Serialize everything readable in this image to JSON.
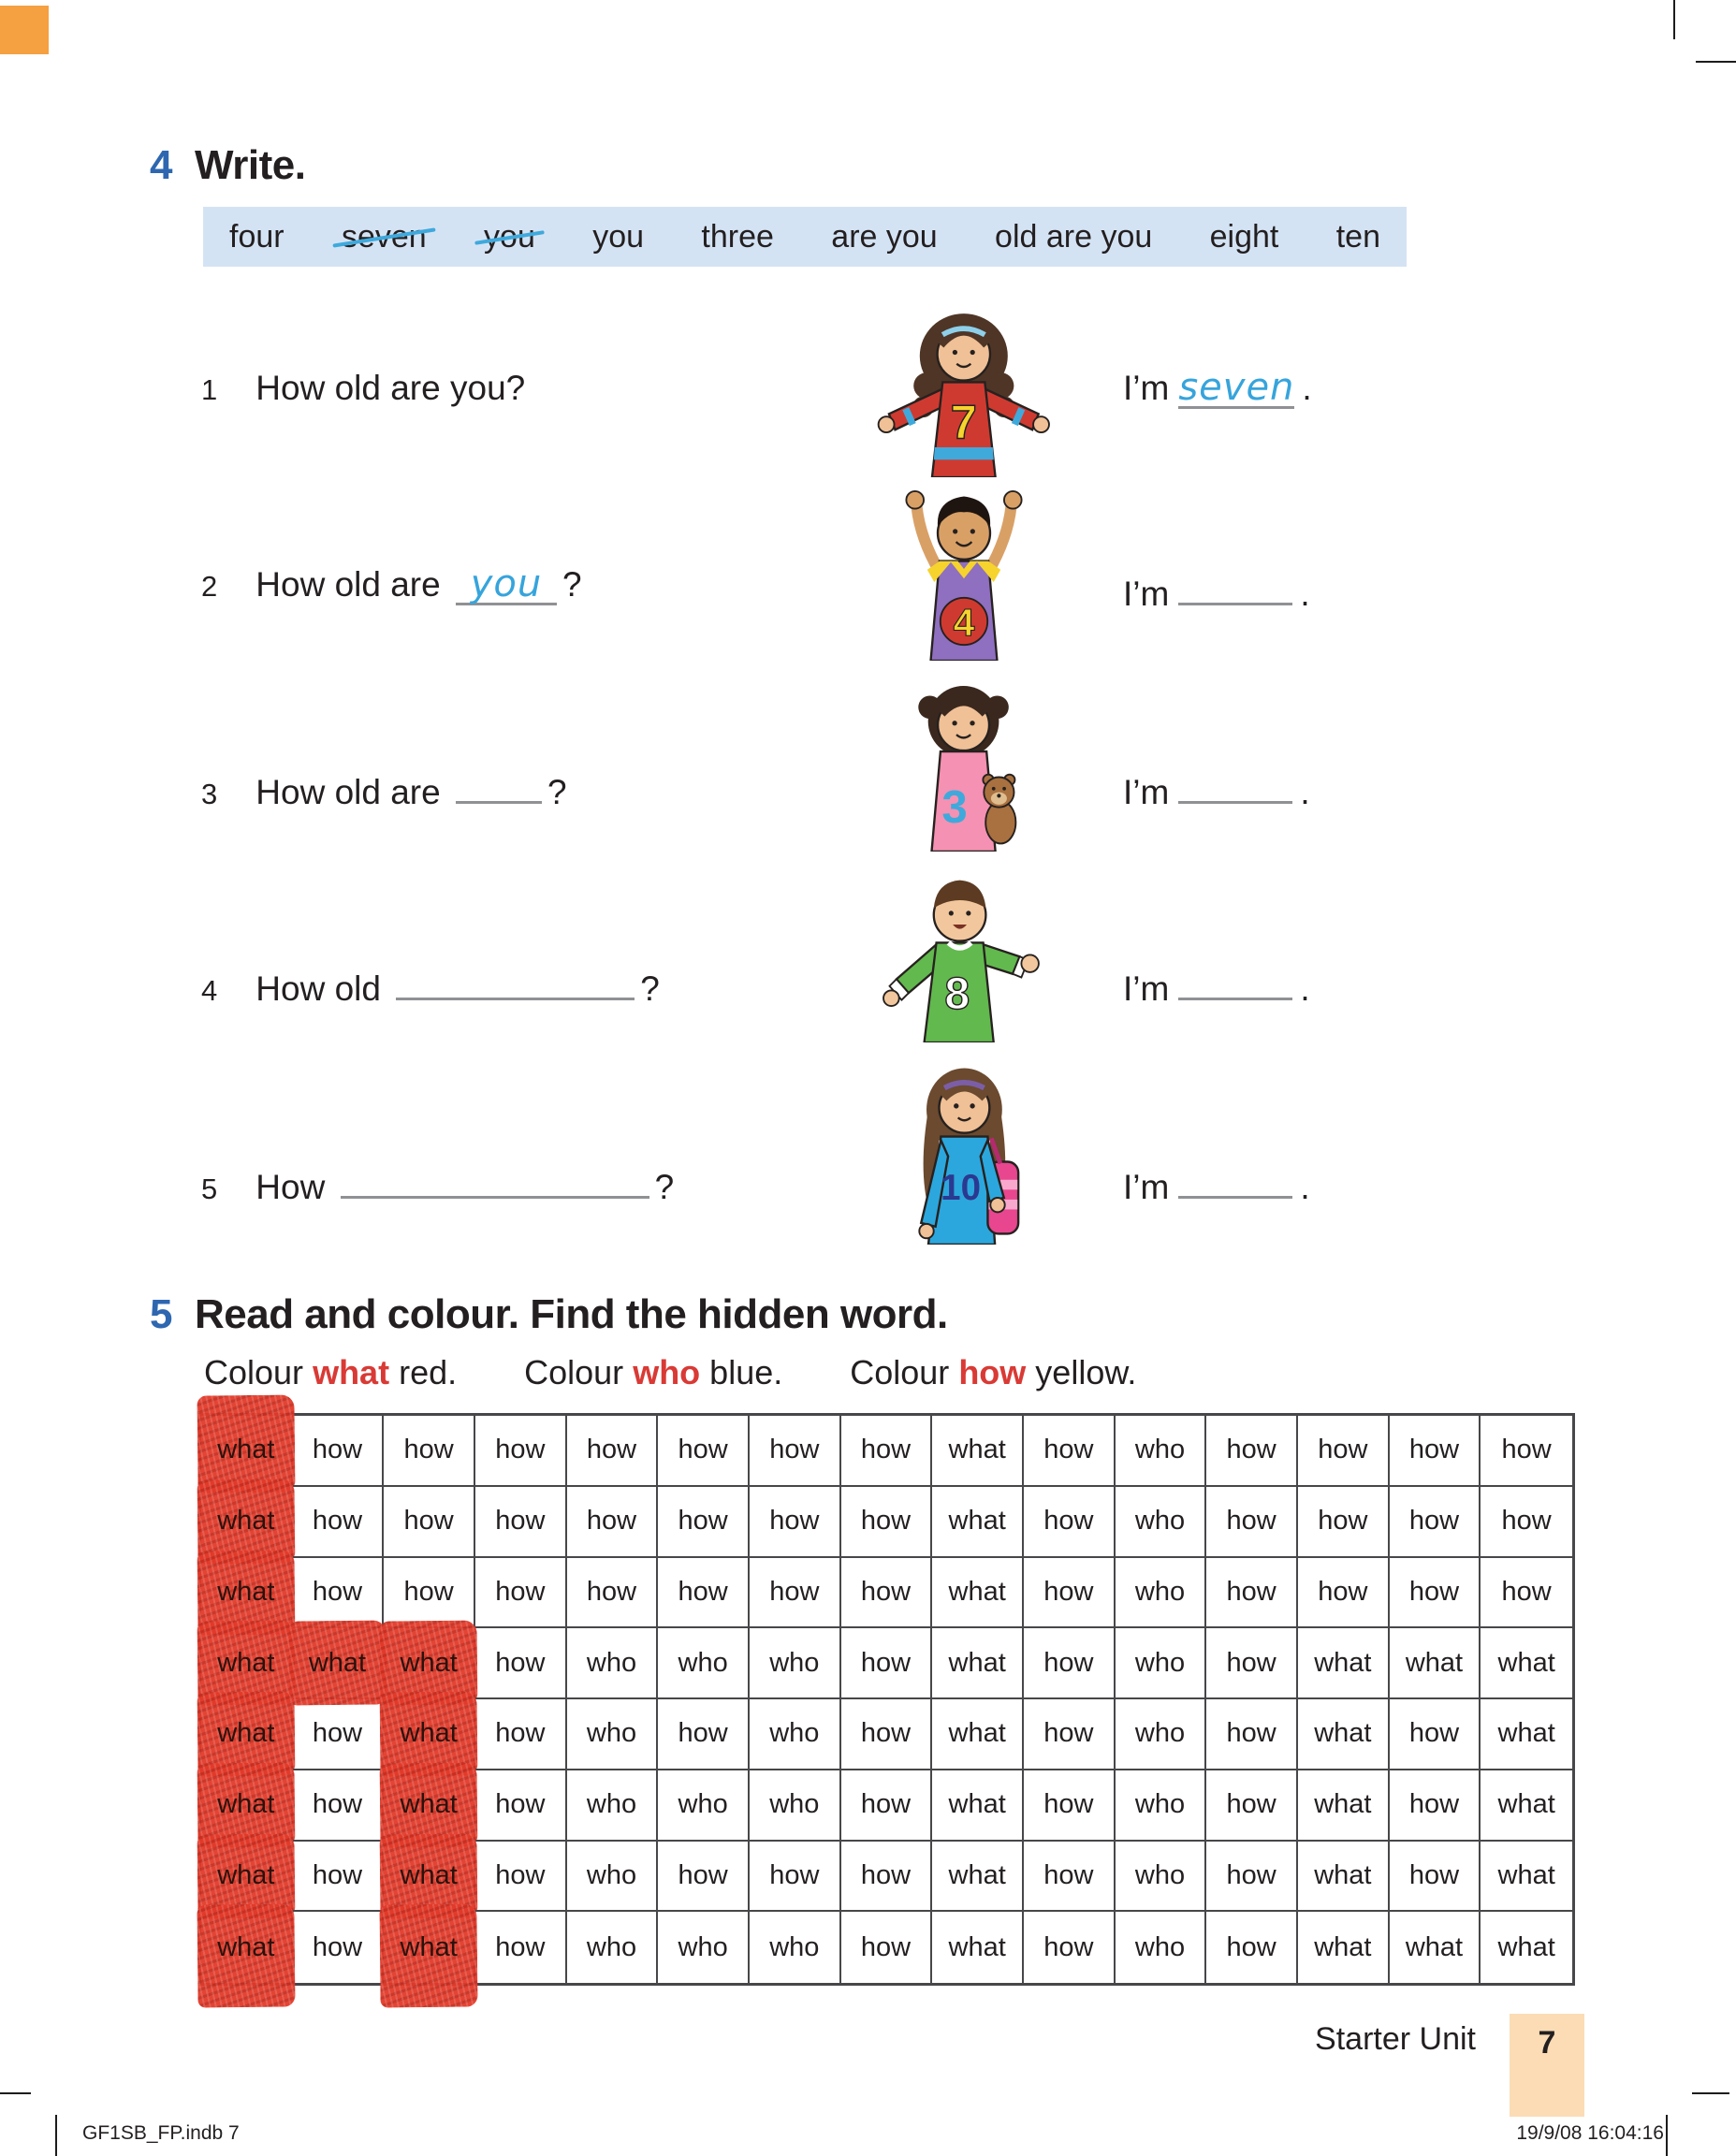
{
  "exercise4": {
    "number": "4",
    "title": "Write.",
    "word_bank": [
      {
        "text": "four",
        "struck": false
      },
      {
        "text": "seven",
        "struck": true
      },
      {
        "text": "you",
        "struck": true
      },
      {
        "text": "you",
        "struck": false
      },
      {
        "text": "three",
        "struck": false
      },
      {
        "text": "are you",
        "struck": false
      },
      {
        "text": "old are you",
        "struck": false
      },
      {
        "text": "eight",
        "struck": false
      },
      {
        "text": "ten",
        "struck": false
      }
    ],
    "questions": [
      {
        "num": "1",
        "text": "How old are you?",
        "blank_written": "",
        "q_end": "",
        "answer_prefix": "I’m",
        "answer_written": "seven",
        "answer_end": ".",
        "shirt_number": "7",
        "character": "girl-red-shirt"
      },
      {
        "num": "2",
        "text": "How old are",
        "blank_written": "you",
        "q_end": "?",
        "answer_prefix": "I’m",
        "answer_written": "",
        "answer_end": ".",
        "shirt_number": "4",
        "character": "boy-purple-shirt"
      },
      {
        "num": "3",
        "text": "How old are",
        "blank_written": "",
        "q_end": "?",
        "answer_prefix": "I’m",
        "answer_written": "",
        "answer_end": ".",
        "shirt_number": "3",
        "character": "girl-pink-shirt-teddy"
      },
      {
        "num": "4",
        "text": "How old",
        "blank_written": "",
        "q_end": "?",
        "answer_prefix": "I’m",
        "answer_written": "",
        "answer_end": ".",
        "shirt_number": "8",
        "character": "boy-green-shirt"
      },
      {
        "num": "5",
        "text": "How",
        "blank_written": "",
        "q_end": "?",
        "answer_prefix": "I’m",
        "answer_written": "",
        "answer_end": ".",
        "shirt_number": "10",
        "character": "girl-blue-shirt-bag"
      }
    ]
  },
  "exercise5": {
    "number": "5",
    "title": "Read and colour. Find the hidden word.",
    "instructions": [
      {
        "pre": "Colour ",
        "word": "what",
        "post": " red."
      },
      {
        "pre": "Colour ",
        "word": "who",
        "post": " blue."
      },
      {
        "pre": "Colour ",
        "word": "how",
        "post": " yellow."
      }
    ],
    "grid": {
      "rows": [
        [
          "what",
          "how",
          "how",
          "how",
          "how",
          "how",
          "how",
          "how",
          "what",
          "how",
          "who",
          "how",
          "how",
          "how",
          "how"
        ],
        [
          "what",
          "how",
          "how",
          "how",
          "how",
          "how",
          "how",
          "how",
          "what",
          "how",
          "who",
          "how",
          "how",
          "how",
          "how"
        ],
        [
          "what",
          "how",
          "how",
          "how",
          "how",
          "how",
          "how",
          "how",
          "what",
          "how",
          "who",
          "how",
          "how",
          "how",
          "how"
        ],
        [
          "what",
          "what",
          "what",
          "how",
          "who",
          "who",
          "who",
          "how",
          "what",
          "how",
          "who",
          "how",
          "what",
          "what",
          "what"
        ],
        [
          "what",
          "how",
          "what",
          "how",
          "who",
          "how",
          "who",
          "how",
          "what",
          "how",
          "who",
          "how",
          "what",
          "how",
          "what"
        ],
        [
          "what",
          "how",
          "what",
          "how",
          "who",
          "who",
          "who",
          "how",
          "what",
          "how",
          "who",
          "how",
          "what",
          "how",
          "what"
        ],
        [
          "what",
          "how",
          "what",
          "how",
          "who",
          "how",
          "how",
          "how",
          "what",
          "how",
          "who",
          "how",
          "what",
          "how",
          "what"
        ],
        [
          "what",
          "how",
          "what",
          "how",
          "who",
          "who",
          "who",
          "how",
          "what",
          "how",
          "who",
          "how",
          "what",
          "what",
          "what"
        ]
      ],
      "red_cells": [
        [
          0,
          0
        ],
        [
          1,
          0
        ],
        [
          2,
          0
        ],
        [
          3,
          0
        ],
        [
          3,
          1
        ],
        [
          3,
          2
        ],
        [
          4,
          0
        ],
        [
          4,
          2
        ],
        [
          5,
          0
        ],
        [
          5,
          2
        ],
        [
          6,
          0
        ],
        [
          6,
          2
        ],
        [
          7,
          0
        ],
        [
          7,
          2
        ]
      ],
      "crayon_color": "#e23a2a"
    }
  },
  "footer": {
    "section": "Starter Unit",
    "page_number": "7",
    "tab_color": "#fbdcb4"
  },
  "imprint": {
    "left": "GF1SB_FP.indb   7",
    "right": "19/9/08   16:04:16"
  },
  "colors": {
    "exercise_number_blue": "#2e67b0",
    "keyword_red": "#d93a35",
    "handwriting_blue": "#36a4dc",
    "word_bank_bg": "#d4e3f4",
    "corner_swatch_orange": "#f5a041"
  }
}
